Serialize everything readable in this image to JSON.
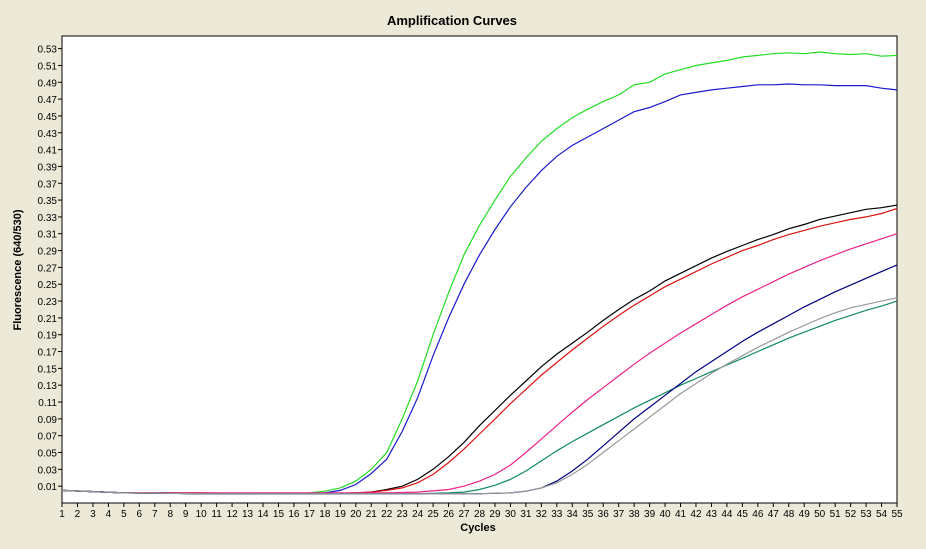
{
  "chart_data": {
    "type": "line",
    "title": "Amplification Curves",
    "xlabel": "Cycles",
    "ylabel": "Fluorescence (640/530)",
    "xlim": [
      1,
      55
    ],
    "ylim": [
      -0.01,
      0.545
    ],
    "x_ticks": [
      1,
      2,
      3,
      4,
      5,
      6,
      7,
      8,
      9,
      10,
      11,
      12,
      13,
      14,
      15,
      16,
      17,
      18,
      19,
      20,
      21,
      22,
      23,
      24,
      25,
      26,
      27,
      28,
      29,
      30,
      31,
      32,
      33,
      34,
      35,
      36,
      37,
      38,
      39,
      40,
      41,
      42,
      43,
      44,
      45,
      46,
      47,
      48,
      49,
      50,
      51,
      52,
      53,
      54,
      55
    ],
    "y_ticks": [
      "0.01",
      "0.03",
      "0.05",
      "0.07",
      "0.09",
      "0.11",
      "0.13",
      "0.15",
      "0.17",
      "0.19",
      "0.21",
      "0.23",
      "0.25",
      "0.27",
      "0.29",
      "0.31",
      "0.33",
      "0.35",
      "0.37",
      "0.39",
      "0.41",
      "0.43",
      "0.45",
      "0.47",
      "0.49",
      "0.51",
      "0.53"
    ],
    "grid": false,
    "series": [
      {
        "color": "#22dd22",
        "points": [
          [
            1,
            0.005
          ],
          [
            5,
            0.002
          ],
          [
            10,
            0.001
          ],
          [
            15,
            0.001
          ],
          [
            17,
            0.002
          ],
          [
            18,
            0.004
          ],
          [
            19,
            0.008
          ],
          [
            20,
            0.016
          ],
          [
            21,
            0.03
          ],
          [
            22,
            0.05
          ],
          [
            23,
            0.09
          ],
          [
            24,
            0.135
          ],
          [
            25,
            0.19
          ],
          [
            26,
            0.24
          ],
          [
            27,
            0.285
          ],
          [
            28,
            0.32
          ],
          [
            29,
            0.35
          ],
          [
            30,
            0.378
          ],
          [
            31,
            0.4
          ],
          [
            32,
            0.42
          ],
          [
            33,
            0.435
          ],
          [
            34,
            0.448
          ],
          [
            35,
            0.458
          ],
          [
            36,
            0.467
          ],
          [
            37,
            0.475
          ],
          [
            38,
            0.487
          ],
          [
            39,
            0.49
          ],
          [
            40,
            0.5
          ],
          [
            41,
            0.505
          ],
          [
            42,
            0.51
          ],
          [
            43,
            0.513
          ],
          [
            44,
            0.516
          ],
          [
            45,
            0.52
          ],
          [
            46,
            0.522
          ],
          [
            47,
            0.524
          ],
          [
            48,
            0.525
          ],
          [
            49,
            0.524
          ],
          [
            50,
            0.526
          ],
          [
            51,
            0.524
          ],
          [
            52,
            0.523
          ],
          [
            53,
            0.524
          ],
          [
            54,
            0.521
          ],
          [
            55,
            0.522
          ]
        ]
      },
      {
        "color": "#1a1acc",
        "points": [
          [
            1,
            0.005
          ],
          [
            5,
            0.002
          ],
          [
            10,
            0.001
          ],
          [
            15,
            0.001
          ],
          [
            17,
            0.001
          ],
          [
            18,
            0.002
          ],
          [
            19,
            0.005
          ],
          [
            20,
            0.012
          ],
          [
            21,
            0.025
          ],
          [
            22,
            0.042
          ],
          [
            23,
            0.075
          ],
          [
            24,
            0.115
          ],
          [
            25,
            0.165
          ],
          [
            26,
            0.21
          ],
          [
            27,
            0.25
          ],
          [
            28,
            0.285
          ],
          [
            29,
            0.315
          ],
          [
            30,
            0.342
          ],
          [
            31,
            0.365
          ],
          [
            32,
            0.385
          ],
          [
            33,
            0.402
          ],
          [
            34,
            0.415
          ],
          [
            35,
            0.425
          ],
          [
            36,
            0.435
          ],
          [
            37,
            0.445
          ],
          [
            38,
            0.455
          ],
          [
            39,
            0.46
          ],
          [
            40,
            0.467
          ],
          [
            41,
            0.475
          ],
          [
            42,
            0.478
          ],
          [
            43,
            0.481
          ],
          [
            44,
            0.483
          ],
          [
            45,
            0.485
          ],
          [
            46,
            0.487
          ],
          [
            47,
            0.487
          ],
          [
            48,
            0.488
          ],
          [
            49,
            0.487
          ],
          [
            50,
            0.487
          ],
          [
            51,
            0.486
          ],
          [
            52,
            0.486
          ],
          [
            53,
            0.486
          ],
          [
            54,
            0.483
          ],
          [
            55,
            0.481
          ]
        ]
      },
      {
        "color": "#000000",
        "points": [
          [
            1,
            0.005
          ],
          [
            5,
            0.002
          ],
          [
            10,
            0.001
          ],
          [
            15,
            0.001
          ],
          [
            18,
            0.001
          ],
          [
            20,
            0.002
          ],
          [
            21,
            0.003
          ],
          [
            22,
            0.006
          ],
          [
            23,
            0.01
          ],
          [
            24,
            0.018
          ],
          [
            25,
            0.03
          ],
          [
            26,
            0.045
          ],
          [
            27,
            0.062
          ],
          [
            28,
            0.082
          ],
          [
            29,
            0.1
          ],
          [
            30,
            0.118
          ],
          [
            31,
            0.135
          ],
          [
            32,
            0.152
          ],
          [
            33,
            0.167
          ],
          [
            34,
            0.18
          ],
          [
            35,
            0.193
          ],
          [
            36,
            0.207
          ],
          [
            37,
            0.22
          ],
          [
            38,
            0.232
          ],
          [
            39,
            0.242
          ],
          [
            40,
            0.254
          ],
          [
            41,
            0.263
          ],
          [
            42,
            0.272
          ],
          [
            43,
            0.281
          ],
          [
            44,
            0.289
          ],
          [
            45,
            0.296
          ],
          [
            46,
            0.303
          ],
          [
            47,
            0.309
          ],
          [
            48,
            0.316
          ],
          [
            49,
            0.321
          ],
          [
            50,
            0.327
          ],
          [
            51,
            0.331
          ],
          [
            52,
            0.335
          ],
          [
            53,
            0.339
          ],
          [
            54,
            0.341
          ],
          [
            55,
            0.344
          ]
        ]
      },
      {
        "color": "#dd1111",
        "points": [
          [
            1,
            0.005
          ],
          [
            5,
            0.002
          ],
          [
            10,
            0.002
          ],
          [
            15,
            0.001
          ],
          [
            18,
            0.001
          ],
          [
            20,
            0.002
          ],
          [
            21,
            0.003
          ],
          [
            22,
            0.005
          ],
          [
            23,
            0.008
          ],
          [
            24,
            0.014
          ],
          [
            25,
            0.024
          ],
          [
            26,
            0.038
          ],
          [
            27,
            0.054
          ],
          [
            28,
            0.072
          ],
          [
            29,
            0.09
          ],
          [
            30,
            0.108
          ],
          [
            31,
            0.125
          ],
          [
            32,
            0.142
          ],
          [
            33,
            0.157
          ],
          [
            34,
            0.172
          ],
          [
            35,
            0.186
          ],
          [
            36,
            0.2
          ],
          [
            37,
            0.213
          ],
          [
            38,
            0.225
          ],
          [
            39,
            0.236
          ],
          [
            40,
            0.247
          ],
          [
            41,
            0.256
          ],
          [
            42,
            0.265
          ],
          [
            43,
            0.274
          ],
          [
            44,
            0.282
          ],
          [
            45,
            0.29
          ],
          [
            46,
            0.296
          ],
          [
            47,
            0.303
          ],
          [
            48,
            0.309
          ],
          [
            49,
            0.314
          ],
          [
            50,
            0.319
          ],
          [
            51,
            0.323
          ],
          [
            52,
            0.327
          ],
          [
            53,
            0.33
          ],
          [
            54,
            0.334
          ],
          [
            55,
            0.34
          ]
        ]
      },
      {
        "color": "#ee2288",
        "points": [
          [
            1,
            0.005
          ],
          [
            5,
            0.002
          ],
          [
            10,
            0.002
          ],
          [
            15,
            0.002
          ],
          [
            20,
            0.002
          ],
          [
            22,
            0.002
          ],
          [
            24,
            0.003
          ],
          [
            26,
            0.006
          ],
          [
            27,
            0.01
          ],
          [
            28,
            0.016
          ],
          [
            29,
            0.024
          ],
          [
            30,
            0.035
          ],
          [
            31,
            0.05
          ],
          [
            32,
            0.066
          ],
          [
            33,
            0.082
          ],
          [
            34,
            0.098
          ],
          [
            35,
            0.113
          ],
          [
            36,
            0.127
          ],
          [
            37,
            0.141
          ],
          [
            38,
            0.155
          ],
          [
            39,
            0.168
          ],
          [
            40,
            0.18
          ],
          [
            41,
            0.192
          ],
          [
            42,
            0.203
          ],
          [
            43,
            0.214
          ],
          [
            44,
            0.225
          ],
          [
            45,
            0.235
          ],
          [
            46,
            0.244
          ],
          [
            47,
            0.253
          ],
          [
            48,
            0.262
          ],
          [
            49,
            0.27
          ],
          [
            50,
            0.278
          ],
          [
            51,
            0.285
          ],
          [
            52,
            0.292
          ],
          [
            53,
            0.298
          ],
          [
            54,
            0.304
          ],
          [
            55,
            0.31
          ]
        ]
      },
      {
        "color": "#118866",
        "points": [
          [
            1,
            0.005
          ],
          [
            5,
            0.002
          ],
          [
            10,
            0.001
          ],
          [
            15,
            0.001
          ],
          [
            20,
            0.001
          ],
          [
            24,
            0.001
          ],
          [
            26,
            0.002
          ],
          [
            27,
            0.003
          ],
          [
            28,
            0.006
          ],
          [
            29,
            0.011
          ],
          [
            30,
            0.018
          ],
          [
            31,
            0.028
          ],
          [
            32,
            0.04
          ],
          [
            33,
            0.052
          ],
          [
            34,
            0.063
          ],
          [
            35,
            0.073
          ],
          [
            36,
            0.083
          ],
          [
            37,
            0.093
          ],
          [
            38,
            0.103
          ],
          [
            39,
            0.112
          ],
          [
            40,
            0.121
          ],
          [
            41,
            0.13
          ],
          [
            42,
            0.138
          ],
          [
            43,
            0.146
          ],
          [
            44,
            0.154
          ],
          [
            45,
            0.162
          ],
          [
            46,
            0.17
          ],
          [
            47,
            0.178
          ],
          [
            48,
            0.186
          ],
          [
            49,
            0.193
          ],
          [
            50,
            0.2
          ],
          [
            51,
            0.207
          ],
          [
            52,
            0.213
          ],
          [
            53,
            0.219
          ],
          [
            54,
            0.224
          ],
          [
            55,
            0.23
          ]
        ]
      },
      {
        "color": "#000080",
        "points": [
          [
            1,
            0.005
          ],
          [
            5,
            0.002
          ],
          [
            10,
            0.001
          ],
          [
            15,
            0.001
          ],
          [
            20,
            0.001
          ],
          [
            25,
            0.001
          ],
          [
            28,
            0.001
          ],
          [
            30,
            0.002
          ],
          [
            31,
            0.004
          ],
          [
            32,
            0.008
          ],
          [
            33,
            0.016
          ],
          [
            34,
            0.028
          ],
          [
            35,
            0.042
          ],
          [
            36,
            0.058
          ],
          [
            37,
            0.074
          ],
          [
            38,
            0.09
          ],
          [
            39,
            0.104
          ],
          [
            40,
            0.118
          ],
          [
            41,
            0.132
          ],
          [
            42,
            0.146
          ],
          [
            43,
            0.158
          ],
          [
            44,
            0.17
          ],
          [
            45,
            0.182
          ],
          [
            46,
            0.193
          ],
          [
            47,
            0.203
          ],
          [
            48,
            0.213
          ],
          [
            49,
            0.223
          ],
          [
            50,
            0.232
          ],
          [
            51,
            0.241
          ],
          [
            52,
            0.249
          ],
          [
            53,
            0.257
          ],
          [
            54,
            0.265
          ],
          [
            55,
            0.273
          ]
        ]
      },
      {
        "color": "#999999",
        "points": [
          [
            1,
            0.005
          ],
          [
            5,
            0.002
          ],
          [
            10,
            0.001
          ],
          [
            15,
            0.001
          ],
          [
            20,
            0.001
          ],
          [
            25,
            0.001
          ],
          [
            28,
            0.001
          ],
          [
            30,
            0.002
          ],
          [
            31,
            0.004
          ],
          [
            32,
            0.008
          ],
          [
            33,
            0.014
          ],
          [
            34,
            0.024
          ],
          [
            35,
            0.036
          ],
          [
            36,
            0.05
          ],
          [
            37,
            0.064
          ],
          [
            38,
            0.078
          ],
          [
            39,
            0.092
          ],
          [
            40,
            0.106
          ],
          [
            41,
            0.12
          ],
          [
            42,
            0.132
          ],
          [
            43,
            0.144
          ],
          [
            44,
            0.155
          ],
          [
            45,
            0.165
          ],
          [
            46,
            0.175
          ],
          [
            47,
            0.184
          ],
          [
            48,
            0.193
          ],
          [
            49,
            0.201
          ],
          [
            50,
            0.209
          ],
          [
            51,
            0.216
          ],
          [
            52,
            0.222
          ],
          [
            53,
            0.226
          ],
          [
            54,
            0.23
          ],
          [
            55,
            0.234
          ]
        ]
      }
    ]
  }
}
